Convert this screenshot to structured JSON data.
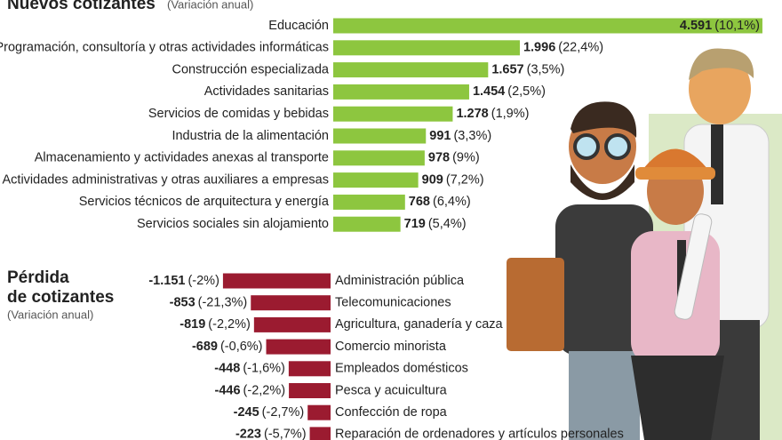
{
  "chart_data": [
    {
      "type": "bar",
      "title": "Nuevos cotizantes",
      "subtitle": "(Variación anual)",
      "color": "#8dc63f",
      "categories": [
        "Educación",
        "Programación, consultoría y otras actividades informáticas",
        "Construcción especializada",
        "Actividades sanitarias",
        "Servicios de comidas y bebidas",
        "Industria de la alimentación",
        "Almacenamiento y actividades anexas al transporte",
        "Actividades administrativas y otras auxiliares a empresas",
        "Servicios técnicos de arquitectura y energía",
        "Servicios sociales sin alojamiento"
      ],
      "values": [
        4591,
        1996,
        1657,
        1454,
        1278,
        991,
        978,
        909,
        768,
        719
      ],
      "value_labels": [
        "4.591",
        "1.996",
        "1.657",
        "1.454",
        "1.278",
        "991",
        "978",
        "909",
        "768",
        "719"
      ],
      "change_labels": [
        "(10,1%)",
        "(22,4%)",
        "(3,5%)",
        "(2,5%)",
        "(1,9%)",
        "(3,3%)",
        "(9%)",
        "(7,2%)",
        "(6,4%)",
        "(5,4%)"
      ]
    },
    {
      "type": "bar",
      "title": [
        "Pérdida",
        "de cotizantes"
      ],
      "subtitle": "(Variación anual)",
      "color": "#9b1b30",
      "categories": [
        "Administración pública",
        "Telecomunicaciones",
        "Agricultura, ganadería y caza",
        "Comercio minorista",
        "Empleados domésticos",
        "Pesca y acuicultura",
        "Confección de ropa",
        "Reparación de ordenadores y artículos personales"
      ],
      "values": [
        -1151,
        -853,
        -819,
        -689,
        -448,
        -446,
        -245,
        -223
      ],
      "value_labels": [
        "-1.151",
        "-853",
        "-819",
        "-689",
        "-448",
        "-446",
        "-245",
        "-223"
      ],
      "change_labels": [
        "(-2%)",
        "(-21,3%)",
        "(-2,2%)",
        "(-0,6%)",
        "(-1,6%)",
        "(-2,2%)",
        "(-2,7%)",
        "(-5,7%)"
      ]
    }
  ]
}
